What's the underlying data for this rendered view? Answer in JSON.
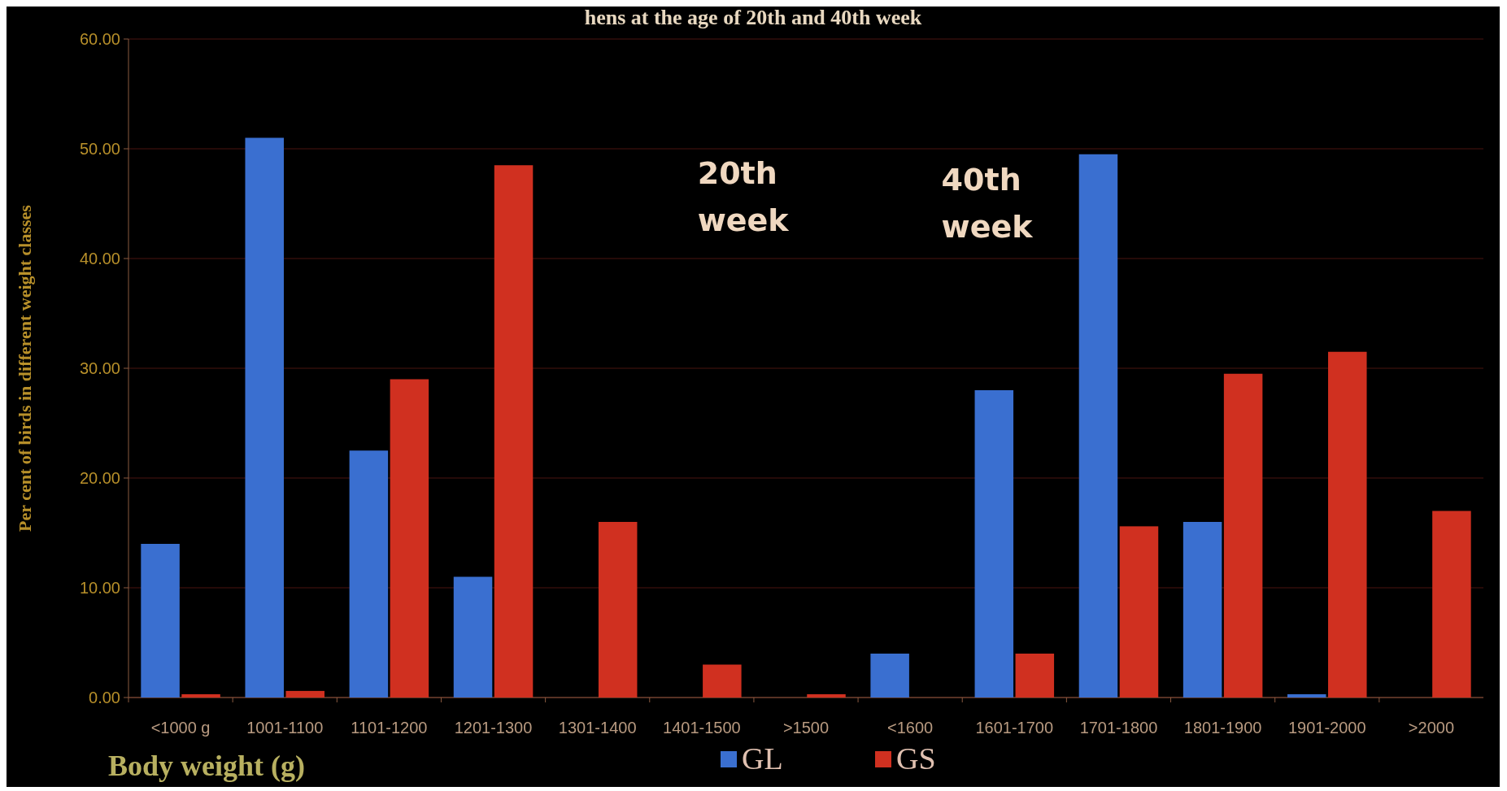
{
  "chart_data": {
    "type": "bar",
    "title": "hens at the age of 20th and 40th week",
    "xlabel": "Body weight (g)",
    "ylabel": "Per cent of birds in different weight classes",
    "categories": [
      "<1000 g",
      "1001-1100",
      "1101-1200",
      "1201-1300",
      "1301-1400",
      "1401-1500",
      ">1500",
      "<1600",
      "1601-1700",
      "1701-1800",
      "1801-1900",
      "1901-2000",
      ">2000"
    ],
    "series": [
      {
        "name": "GL",
        "color": "#3a6fd0",
        "values": [
          14,
          51,
          22.5,
          11,
          0,
          0,
          0,
          4,
          28,
          49.5,
          16,
          0.3,
          0
        ]
      },
      {
        "name": "GS",
        "color": "#d03020",
        "values": [
          0.3,
          0.6,
          29,
          48.5,
          16,
          3,
          0.3,
          0,
          4,
          15.6,
          29.5,
          31.5,
          17
        ]
      }
    ],
    "ylim": [
      0,
      60
    ],
    "yticks": [
      {
        "value": 0,
        "label": "0.00"
      },
      {
        "value": 10,
        "label": "10.00"
      },
      {
        "value": 20,
        "label": "20.00"
      },
      {
        "value": 30,
        "label": "30.00"
      },
      {
        "value": 40,
        "label": "40.00"
      },
      {
        "value": 50,
        "label": "50.00"
      },
      {
        "value": 60,
        "label": "60.00"
      }
    ],
    "grid": "y",
    "legend": "bottom",
    "annotations": [
      "20th\nweek",
      "40th\nweek"
    ]
  }
}
